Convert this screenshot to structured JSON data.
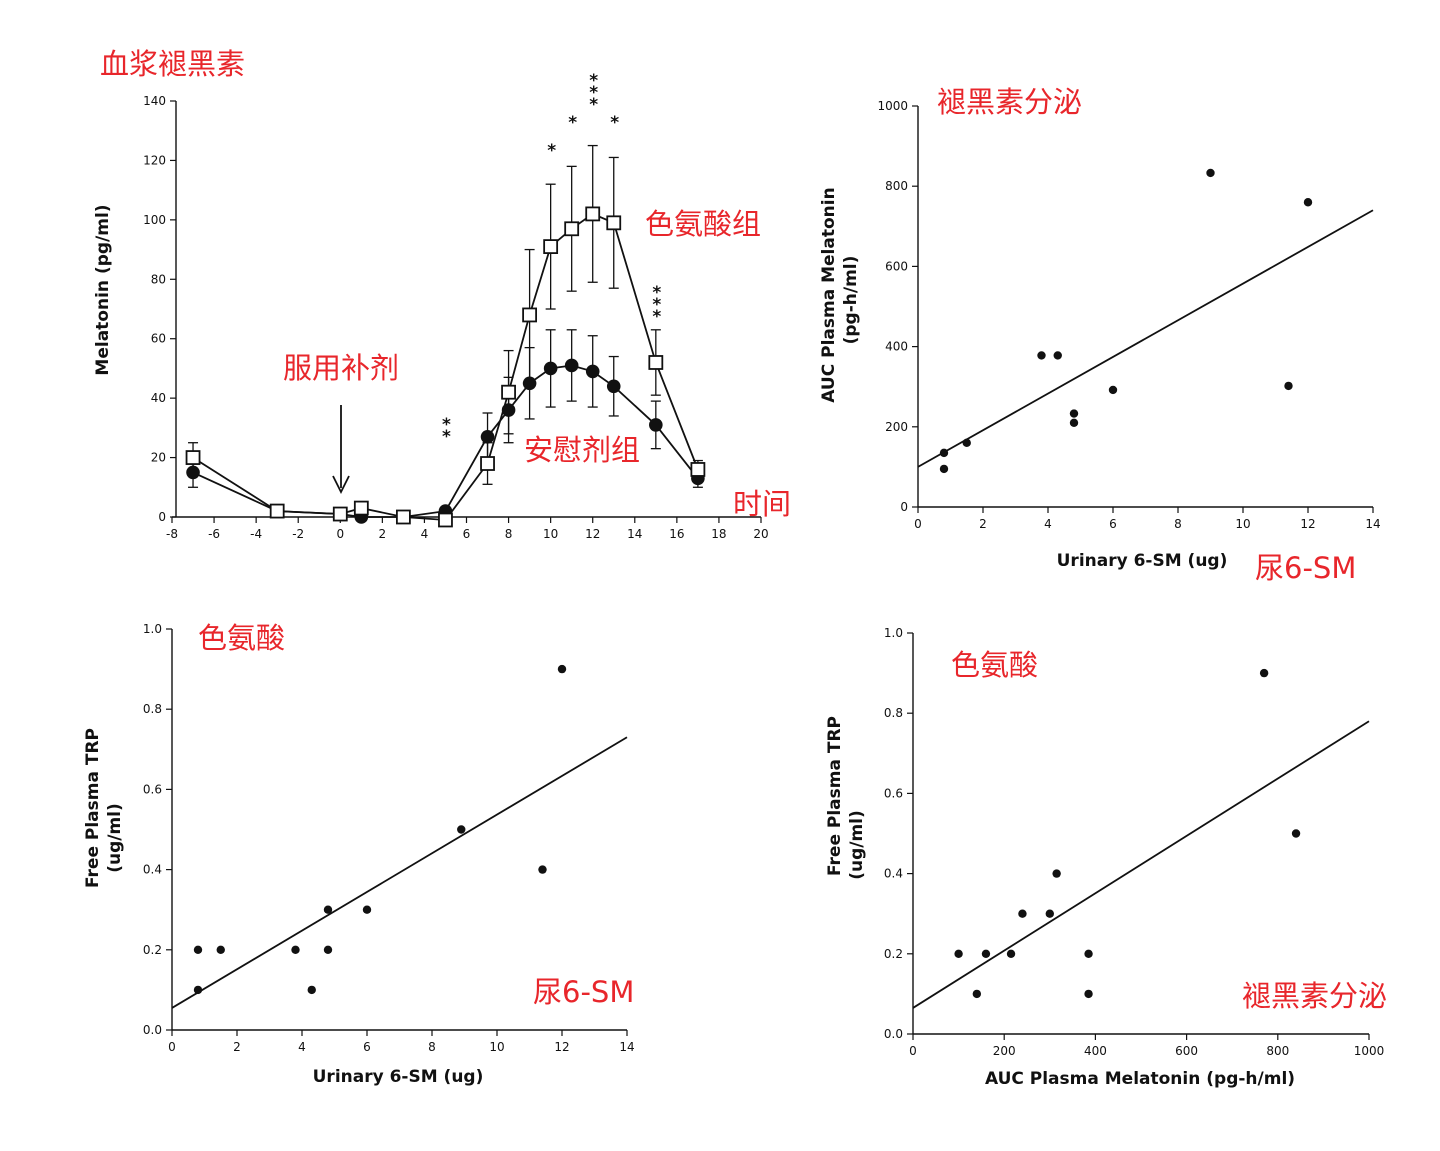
{
  "colors": {
    "annotation": "#e8262b",
    "ink": "#111111",
    "background": "#ffffff"
  },
  "chart_data": [
    {
      "id": "melatonin_time",
      "type": "line",
      "title": "血浆褪黑素",
      "xlabel": "",
      "ylabel": "Melatonin (pg/ml)",
      "xlim": [
        -8,
        20
      ],
      "ylim": [
        0,
        140
      ],
      "xticks": [
        "-8",
        "-6",
        "-4",
        "-2",
        "0",
        "2",
        "4",
        "6",
        "8",
        "10",
        "12",
        "14",
        "16",
        "18",
        "20"
      ],
      "yticks": [
        "0",
        "20",
        "40",
        "60",
        "80",
        "100",
        "120",
        "140"
      ],
      "series": [
        {
          "name": "色氨酸组",
          "marker": "open-square",
          "x": [
            -7,
            -3,
            0,
            1,
            3,
            5,
            7,
            8,
            9,
            10,
            11,
            12,
            13,
            15,
            17
          ],
          "y": [
            20,
            2,
            1,
            3,
            0,
            -1,
            18,
            42,
            68,
            91,
            97,
            102,
            99,
            52,
            16
          ],
          "err": [
            5,
            0,
            0,
            0,
            0,
            0,
            7,
            14,
            22,
            21,
            21,
            23,
            22,
            11,
            3
          ]
        },
        {
          "name": "安慰剂组",
          "marker": "filled-circle",
          "x": [
            -7,
            -3,
            0,
            1,
            3,
            5,
            7,
            8,
            9,
            10,
            11,
            12,
            13,
            15,
            17
          ],
          "y": [
            15,
            2,
            1,
            0,
            0,
            2,
            27,
            36,
            45,
            50,
            51,
            49,
            44,
            31,
            13
          ],
          "err": [
            5,
            0,
            0,
            0,
            0,
            0,
            8,
            11,
            12,
            13,
            12,
            12,
            10,
            8,
            3
          ]
        }
      ],
      "significance": [
        {
          "x": 5,
          "label": "**"
        },
        {
          "x": 10,
          "label": "*"
        },
        {
          "x": 11,
          "label": "*"
        },
        {
          "x": 12,
          "label": "***"
        },
        {
          "x": 13,
          "label": "*"
        },
        {
          "x": 15,
          "label": "***"
        }
      ],
      "annotations": {
        "supplement": "服用补剂",
        "trp_group": "色氨酸组",
        "placebo_group": "安慰剂组",
        "time": "时间"
      }
    },
    {
      "id": "auc_vs_6sm",
      "type": "scatter",
      "title": "褪黑素分泌",
      "xlabel": "Urinary 6-SM (ug)",
      "ylabel": "AUC Plasma Melatonin",
      "ylabel2": "(pg-h/ml)",
      "xlim": [
        0,
        14
      ],
      "ylim": [
        0,
        1000
      ],
      "xticks": [
        "0",
        "2",
        "4",
        "6",
        "8",
        "10",
        "12",
        "14"
      ],
      "yticks": [
        "0",
        "200",
        "400",
        "600",
        "800",
        "1000"
      ],
      "points": [
        [
          0.8,
          135
        ],
        [
          0.8,
          95
        ],
        [
          1.5,
          160
        ],
        [
          3.8,
          378
        ],
        [
          4.3,
          378
        ],
        [
          4.8,
          233
        ],
        [
          4.8,
          210
        ],
        [
          6.0,
          292
        ],
        [
          9.0,
          833
        ],
        [
          11.4,
          302
        ],
        [
          12.0,
          760
        ]
      ],
      "fit": [
        [
          0,
          100
        ],
        [
          14,
          740
        ]
      ],
      "xannotation": "尿6-SM"
    },
    {
      "id": "trp_vs_6sm",
      "type": "scatter",
      "title": "色氨酸",
      "xlabel": "Urinary 6-SM (ug)",
      "ylabel": "Free Plasma TRP",
      "ylabel2": "(ug/ml)",
      "xlim": [
        0,
        14
      ],
      "ylim": [
        0,
        1.0
      ],
      "xticks": [
        "0",
        "2",
        "4",
        "6",
        "8",
        "10",
        "12",
        "14"
      ],
      "yticks": [
        "0.0",
        "0.2",
        "0.4",
        "0.6",
        "0.8",
        "1.0"
      ],
      "points": [
        [
          0.8,
          0.2
        ],
        [
          0.8,
          0.1
        ],
        [
          1.5,
          0.2
        ],
        [
          3.8,
          0.2
        ],
        [
          4.3,
          0.1
        ],
        [
          4.8,
          0.3
        ],
        [
          4.8,
          0.2
        ],
        [
          6.0,
          0.3
        ],
        [
          8.9,
          0.5
        ],
        [
          11.4,
          0.4
        ],
        [
          12.0,
          0.9
        ]
      ],
      "fit": [
        [
          0,
          0.055
        ],
        [
          14,
          0.73
        ]
      ],
      "xannotation": "尿6-SM"
    },
    {
      "id": "trp_vs_auc",
      "type": "scatter",
      "title": "色氨酸",
      "xlabel": "AUC Plasma Melatonin (pg-h/ml)",
      "ylabel": "Free Plasma TRP",
      "ylabel2": "(ug/ml)",
      "xlim": [
        0,
        1000
      ],
      "ylim": [
        0,
        1.0
      ],
      "xticks": [
        "0",
        "200",
        "400",
        "600",
        "800",
        "1000"
      ],
      "yticks": [
        "0.0",
        "0.2",
        "0.4",
        "0.6",
        "0.8",
        "1.0"
      ],
      "points": [
        [
          100,
          0.2
        ],
        [
          140,
          0.1
        ],
        [
          160,
          0.2
        ],
        [
          215,
          0.2
        ],
        [
          240,
          0.3
        ],
        [
          300,
          0.3
        ],
        [
          315,
          0.4
        ],
        [
          385,
          0.2
        ],
        [
          385,
          0.1
        ],
        [
          770,
          0.9
        ],
        [
          840,
          0.5
        ]
      ],
      "fit": [
        [
          0,
          0.065
        ],
        [
          1000,
          0.78
        ]
      ],
      "xannotation": "褪黑素分泌"
    }
  ]
}
